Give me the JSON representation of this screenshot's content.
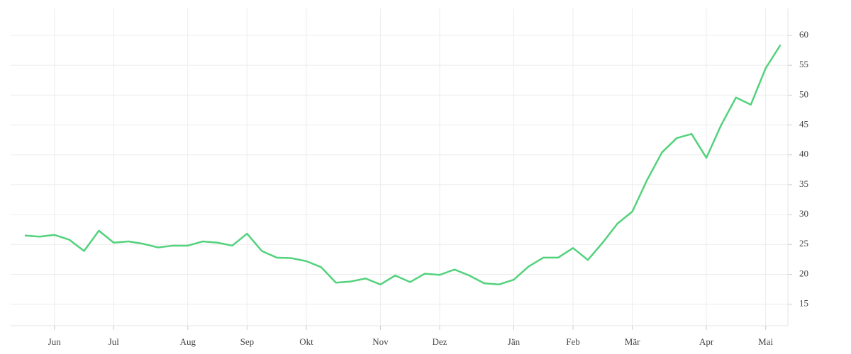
{
  "chart_data": {
    "type": "line",
    "categories": [
      null,
      null,
      "Jun",
      null,
      null,
      null,
      "Jul",
      null,
      null,
      null,
      null,
      "Aug",
      null,
      null,
      null,
      "Sep",
      null,
      null,
      null,
      "Okt",
      null,
      null,
      null,
      null,
      "Nov",
      null,
      null,
      null,
      "Dez",
      null,
      null,
      null,
      null,
      "Jän",
      null,
      null,
      null,
      "Feb",
      null,
      null,
      null,
      "Mär",
      null,
      null,
      null,
      null,
      "Apr",
      null,
      null,
      null,
      "Mai",
      null
    ],
    "series": [
      {
        "color": "#52d27c",
        "values": [
          26.5,
          26.3,
          26.6,
          25.8,
          23.9,
          27.3,
          25.3,
          25.5,
          25.1,
          24.5,
          24.8,
          24.8,
          25.5,
          25.3,
          24.8,
          26.8,
          23.9,
          22.8,
          22.7,
          22.2,
          21.2,
          18.6,
          18.8,
          19.3,
          18.3,
          19.8,
          18.7,
          20.1,
          19.9,
          20.8,
          19.8,
          18.5,
          18.3,
          19.1,
          21.3,
          22.8,
          22.8,
          24.4,
          22.4,
          25.3,
          28.5,
          30.5,
          35.8,
          40.4,
          42.8,
          43.5,
          39.5,
          45.0,
          49.6,
          48.4,
          54.5,
          58.4
        ]
      }
    ],
    "ylim": [
      11.4,
      64.5
    ],
    "yticks": [
      15,
      20,
      25,
      30,
      35,
      40,
      45,
      50,
      55,
      60
    ],
    "grid": true
  }
}
